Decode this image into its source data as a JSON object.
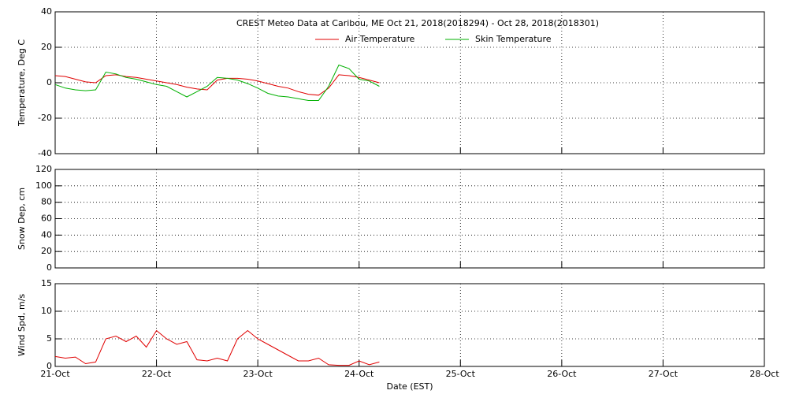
{
  "chart_data": [
    {
      "type": "line",
      "title": "CREST Meteo Data at Caribou, ME   Oct 21, 2018(2018294) - Oct 28, 2018(2018301)",
      "ylabel": "Temperature, Deg C",
      "legend": "top",
      "grid": true,
      "xlim": [
        0,
        7
      ],
      "xticks": [
        0,
        1,
        2,
        3,
        4,
        5,
        6,
        7
      ],
      "ylim": [
        -40,
        40
      ],
      "yticks": [
        -40,
        -20,
        0,
        20,
        40
      ],
      "x": [
        0,
        0.1,
        0.2,
        0.3,
        0.4,
        0.5,
        0.6,
        0.7,
        0.8,
        0.9,
        1,
        1.1,
        1.2,
        1.3,
        1.4,
        1.5,
        1.6,
        1.7,
        1.8,
        1.9,
        2,
        2.1,
        2.2,
        2.3,
        2.4,
        2.5,
        2.6,
        2.7,
        2.8,
        2.9,
        3,
        3.1,
        3.2
      ],
      "series": [
        {
          "name": "Air Temperature",
          "color": "#e00000",
          "values": [
            4,
            3.5,
            2,
            0.5,
            0,
            4,
            4.5,
            3.5,
            3,
            2,
            1,
            0,
            -1,
            -2.5,
            -3.5,
            -4,
            1.5,
            2.5,
            2.5,
            2,
            1,
            -0.5,
            -2,
            -3,
            -5,
            -6.5,
            -7,
            -3,
            4.5,
            4,
            3,
            1.5,
            0
          ]
        },
        {
          "name": "Skin Temperature",
          "color": "#00b000",
          "values": [
            -1,
            -3,
            -4,
            -4.5,
            -4,
            6,
            5,
            3,
            2,
            0.5,
            -1,
            -2,
            -5,
            -8,
            -5,
            -2,
            3,
            2.5,
            1.5,
            -0.5,
            -3,
            -6,
            -7.5,
            -8,
            -9,
            -10,
            -10,
            -2,
            10,
            8,
            2,
            1,
            -2
          ]
        }
      ]
    },
    {
      "type": "line",
      "ylabel": "Snow Dep, cm",
      "grid": true,
      "xlim": [
        0,
        7
      ],
      "xticks": [
        0,
        1,
        2,
        3,
        4,
        5,
        6,
        7
      ],
      "ylim": [
        0,
        120
      ],
      "yticks": [
        0,
        20,
        40,
        60,
        80,
        100,
        120
      ],
      "x": [],
      "series": []
    },
    {
      "type": "line",
      "ylabel": "Wind Spd, m/s",
      "xlabel": "Date (EST)",
      "grid": true,
      "xlim": [
        0,
        7
      ],
      "xticks": [
        {
          "value": 0,
          "label": "21-Oct"
        },
        {
          "value": 1,
          "label": "22-Oct"
        },
        {
          "value": 2,
          "label": "23-Oct"
        },
        {
          "value": 3,
          "label": "24-Oct"
        },
        {
          "value": 4,
          "label": "25-Oct"
        },
        {
          "value": 5,
          "label": "26-Oct"
        },
        {
          "value": 6,
          "label": "27-Oct"
        },
        {
          "value": 7,
          "label": "28-Oct"
        }
      ],
      "ylim": [
        0,
        15
      ],
      "yticks": [
        0,
        5,
        10,
        15
      ],
      "x": [
        0,
        0.1,
        0.2,
        0.3,
        0.4,
        0.5,
        0.6,
        0.7,
        0.8,
        0.9,
        1,
        1.1,
        1.2,
        1.3,
        1.4,
        1.5,
        1.6,
        1.7,
        1.8,
        1.9,
        2,
        2.1,
        2.2,
        2.3,
        2.4,
        2.5,
        2.6,
        2.7,
        2.8,
        2.9,
        3,
        3.1,
        3.2
      ],
      "series": [
        {
          "name": "Wind Speed",
          "color": "#e00000",
          "values": [
            1.8,
            1.5,
            1.7,
            0.5,
            0.8,
            5,
            5.5,
            4.5,
            5.5,
            3.5,
            6.5,
            5,
            4,
            4.5,
            1.2,
            1,
            1.5,
            1,
            5,
            6.5,
            5,
            4,
            3,
            2,
            1,
            1,
            1.5,
            0.3,
            0.2,
            0.2,
            1,
            0.3,
            0.8
          ]
        }
      ]
    }
  ]
}
